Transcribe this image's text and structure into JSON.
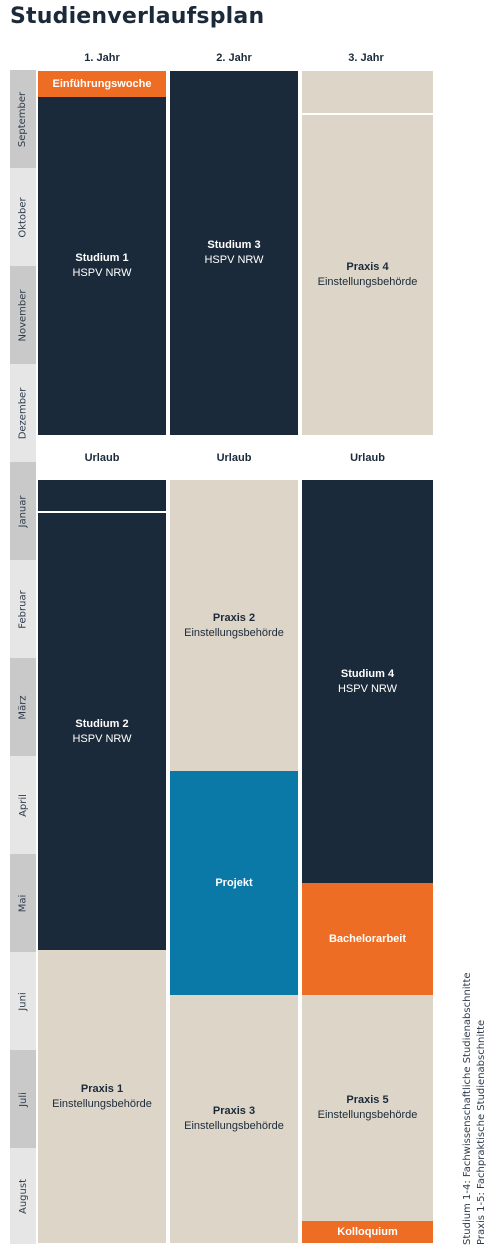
{
  "title": "Studienverlaufsplan",
  "years": [
    "1. Jahr",
    "2. Jahr",
    "3. Jahr"
  ],
  "months": [
    "September",
    "Oktober",
    "November",
    "Dezember",
    "Januar",
    "Februar",
    "März",
    "April",
    "Mai",
    "Juni",
    "Juli",
    "August"
  ],
  "urlaub": "Urlaub",
  "blocks": {
    "einfuehrung": {
      "name": "Einführungswoche"
    },
    "studium1": {
      "name": "Studium 1",
      "sub": "HSPV NRW"
    },
    "studium2": {
      "name": "Studium 2",
      "sub": "HSPV NRW"
    },
    "studium3": {
      "name": "Studium 3",
      "sub": "HSPV NRW"
    },
    "studium4": {
      "name": "Studium 4",
      "sub": "HSPV NRW"
    },
    "praxis1": {
      "name": "Praxis 1",
      "sub": "Einstellungsbehörde"
    },
    "praxis2": {
      "name": "Praxis 2",
      "sub": "Einstellungsbehörde"
    },
    "praxis3": {
      "name": "Praxis 3",
      "sub": "Einstellungsbehörde"
    },
    "praxis4": {
      "name": "Praxis 4",
      "sub": "Einstellungsbehörde"
    },
    "praxis5": {
      "name": "Praxis 5",
      "sub": "Einstellungsbehörde"
    },
    "projekt": {
      "name": "Projekt"
    },
    "bachelorarbeit": {
      "name": "Bachelorarbeit"
    },
    "kolloquium": {
      "name": "Kolloquium"
    }
  },
  "legend": [
    "Studium 1-4: Fachwissenschaftliche Studienabschnitte",
    "Praxis 1-5: Fachpraktische Studienabschnitte"
  ],
  "colors": {
    "studium": "#1b2a3a",
    "praxis": "#ddd5c8",
    "projekt": "#0a79a8",
    "highlight": "#ee6d25"
  }
}
